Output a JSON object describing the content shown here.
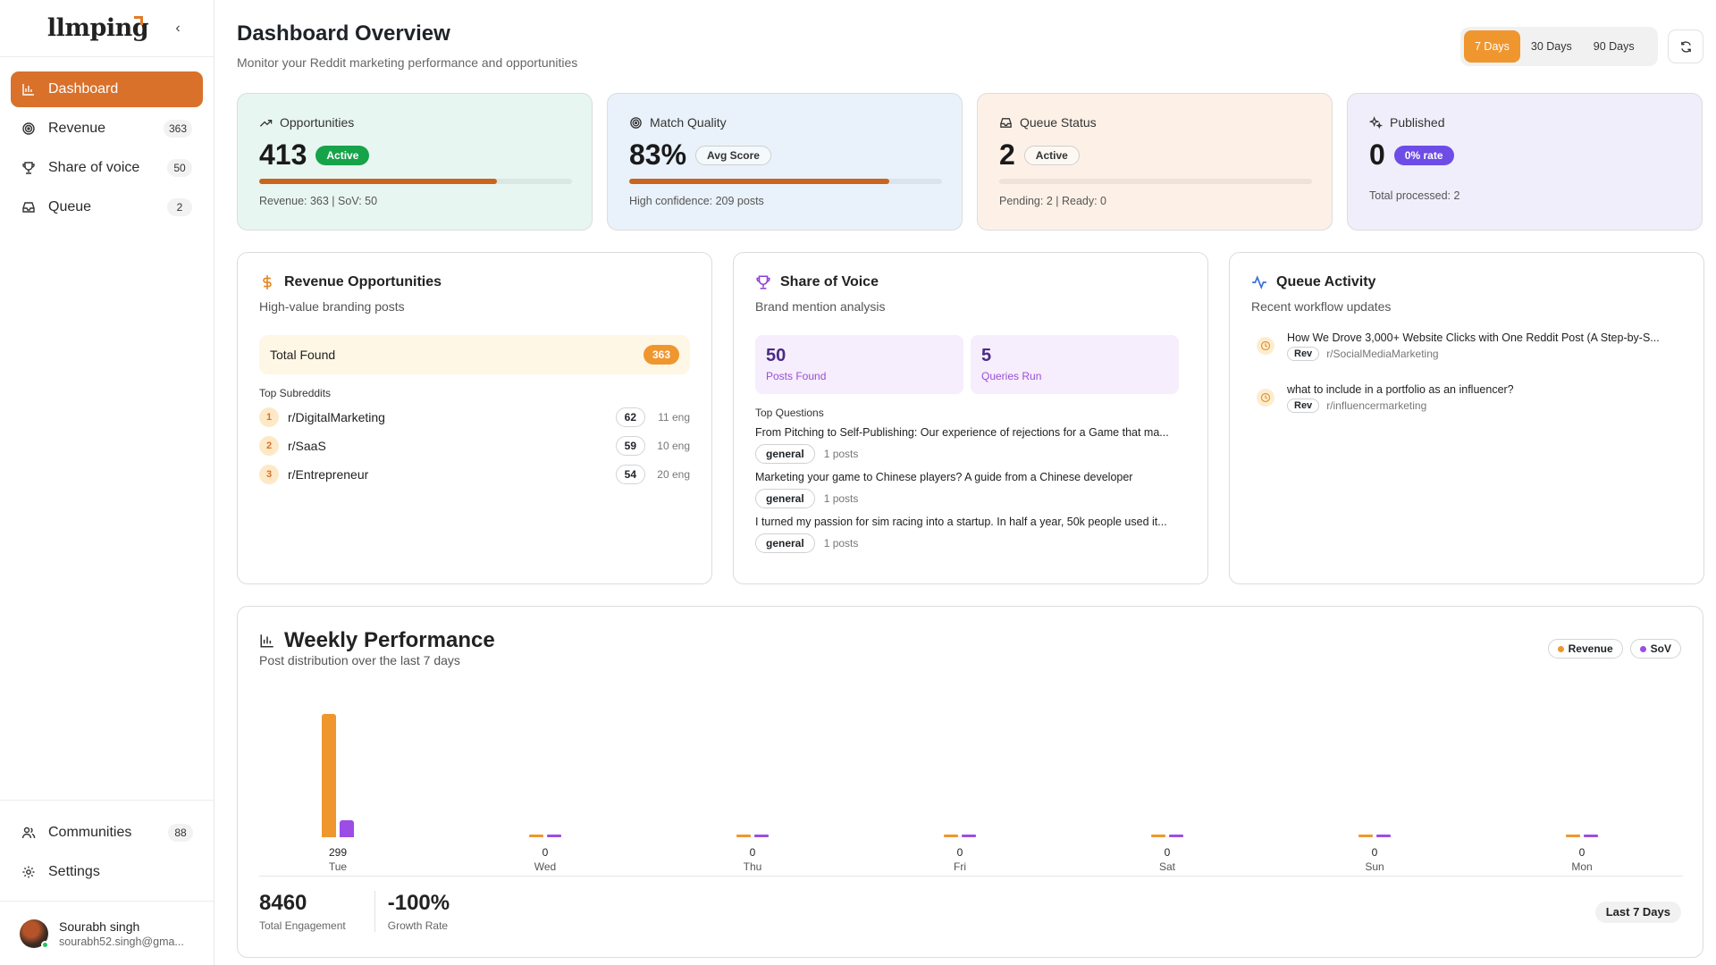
{
  "app": {
    "logo": "llmping"
  },
  "sidebar": {
    "items": [
      {
        "label": "Dashboard",
        "badge": ""
      },
      {
        "label": "Revenue",
        "badge": "363"
      },
      {
        "label": "Share of voice",
        "badge": "50"
      },
      {
        "label": "Queue",
        "badge": "2"
      }
    ],
    "bottom_items": [
      {
        "label": "Communities",
        "badge": "88"
      },
      {
        "label": "Settings",
        "badge": ""
      }
    ],
    "user": {
      "name": "Sourabh singh",
      "email": "sourabh52.singh@gma..."
    }
  },
  "header": {
    "title": "Dashboard Overview",
    "subtitle": "Monitor your Reddit marketing performance and opportunities",
    "ranges": [
      "7 Days",
      "30 Days",
      "90 Days"
    ],
    "active_range": "7 Days"
  },
  "stats": [
    {
      "label": "Opportunities",
      "value": "413",
      "pill": "Active",
      "progress": 0.76,
      "footer": "Revenue: 363 | SoV: 50",
      "bg": "#e8f6f2"
    },
    {
      "label": "Match Quality",
      "value": "83%",
      "pill": "Avg Score",
      "progress": 0.83,
      "footer": "High confidence: 209 posts",
      "bg": "#e9f2fb"
    },
    {
      "label": "Queue Status",
      "value": "2",
      "pill": "Active",
      "progress": 0.0,
      "footer": "Pending: 2 | Ready: 0",
      "bg": "#fdf1e7"
    },
    {
      "label": "Published",
      "value": "0",
      "pill": "0% rate",
      "footer": "Total processed: 2",
      "bg": "#f1eefb"
    }
  ],
  "revenue_panel": {
    "title": "Revenue Opportunities",
    "subtitle": "High-value branding posts",
    "total_label": "Total Found",
    "total_value": "363",
    "top_label": "Top Subreddits",
    "subreddits": [
      {
        "rank": "1",
        "name": "r/DigitalMarketing",
        "count": "62",
        "eng": "11 eng"
      },
      {
        "rank": "2",
        "name": "r/SaaS",
        "count": "59",
        "eng": "10 eng"
      },
      {
        "rank": "3",
        "name": "r/Entrepreneur",
        "count": "54",
        "eng": "20 eng"
      }
    ]
  },
  "sov_panel": {
    "title": "Share of Voice",
    "subtitle": "Brand mention analysis",
    "posts_found": "50",
    "posts_found_label": "Posts Found",
    "queries_run": "5",
    "queries_run_label": "Queries Run",
    "top_label": "Top Questions",
    "questions": [
      {
        "title": "From Pitching to Self-Publishing: Our experience of rejections for a Game that ma...",
        "tag": "general",
        "count": "1 posts"
      },
      {
        "title": "Marketing your game to Chinese players? A guide from a Chinese developer",
        "tag": "general",
        "count": "1 posts"
      },
      {
        "title": "I turned my passion for sim racing into a startup. In half a year, 50k people used it...",
        "tag": "general",
        "count": "1 posts"
      }
    ]
  },
  "queue_panel": {
    "title": "Queue Activity",
    "subtitle": "Recent workflow updates",
    "items": [
      {
        "title": "How We Drove 3,000+ Website Clicks with One Reddit Post (A Step-by-S...",
        "tag": "Rev",
        "subreddit": "r/SocialMediaMarketing"
      },
      {
        "title": "what to include in a portfolio as an influencer?",
        "tag": "Rev",
        "subreddit": "r/influencermarketing"
      }
    ]
  },
  "weekly": {
    "title": "Weekly Performance",
    "subtitle": "Post distribution over the last 7 days",
    "legend": [
      "Revenue",
      "SoV"
    ],
    "total_engagement": "8460",
    "total_engagement_label": "Total Engagement",
    "growth_rate": "-100%",
    "growth_rate_label": "Growth Rate",
    "range_label": "Last 7 Days"
  },
  "chart_data": {
    "type": "bar",
    "categories": [
      "Tue",
      "Wed",
      "Thu",
      "Fri",
      "Sat",
      "Sun",
      "Mon"
    ],
    "totals": [
      "299",
      "0",
      "0",
      "0",
      "0",
      "0",
      "0"
    ],
    "series": [
      {
        "name": "Revenue",
        "color": "#f0962e",
        "values": [
          262,
          0,
          0,
          0,
          0,
          0,
          0
        ]
      },
      {
        "name": "SoV",
        "color": "#9b4de6",
        "values": [
          37,
          0,
          0,
          0,
          0,
          0,
          0
        ]
      }
    ],
    "ylim": [
      0,
      262
    ]
  }
}
